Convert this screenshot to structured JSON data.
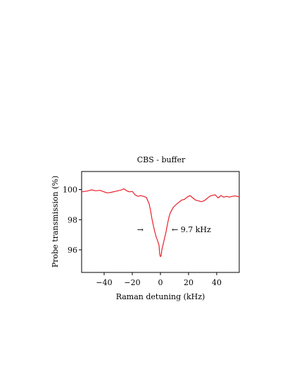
{
  "chart_data": {
    "type": "line",
    "title": "CBS - buffer",
    "xlabel": "Raman detuning (kHz)",
    "ylabel": "Probe transmission (%)",
    "xlim": [
      -56,
      56
    ],
    "ylim": [
      94.5,
      101.2
    ],
    "xticks": [
      -40,
      -20,
      0,
      20,
      40
    ],
    "xtick_labels": [
      "−40",
      "−20",
      "0",
      "20",
      "40"
    ],
    "yticks": [
      96,
      98,
      100
    ],
    "ytick_labels": [
      "96",
      "98",
      "100"
    ],
    "grid": false,
    "series": [
      {
        "color": "#e8202a",
        "x": [
          -56,
          -52,
          -49,
          -46,
          -43,
          -40,
          -38,
          -35,
          -31,
          -28,
          -26,
          -24,
          -22,
          -20,
          -18,
          -16,
          -14,
          -12,
          -10,
          -8,
          -7,
          -6,
          -5,
          -4,
          -3,
          -2,
          -1,
          -0.5,
          0,
          0.5,
          1,
          2,
          3,
          4,
          5,
          6,
          7,
          9,
          11,
          13,
          15,
          17,
          19,
          21,
          23,
          25,
          27,
          29,
          31,
          33,
          35,
          37,
          39,
          41,
          43,
          45,
          47,
          49,
          51,
          53,
          56
        ],
        "y": [
          99.85,
          99.9,
          99.98,
          99.92,
          99.95,
          99.85,
          99.78,
          99.82,
          99.9,
          99.97,
          100.05,
          99.92,
          99.85,
          99.88,
          99.65,
          99.55,
          99.6,
          99.55,
          99.48,
          99.05,
          98.6,
          98.05,
          97.6,
          97.2,
          96.85,
          96.6,
          96.3,
          95.7,
          95.55,
          95.6,
          96.0,
          96.4,
          96.8,
          97.2,
          97.7,
          98.15,
          98.45,
          98.8,
          99.0,
          99.15,
          99.3,
          99.35,
          99.5,
          99.6,
          99.45,
          99.3,
          99.25,
          99.2,
          99.25,
          99.4,
          99.55,
          99.62,
          99.65,
          99.45,
          99.6,
          99.5,
          99.55,
          99.5,
          99.55,
          99.58,
          99.52
        ]
      }
    ],
    "annotations": [
      {
        "text": "→",
        "x": -12,
        "y": 97.35
      },
      {
        "text": "← 9.7 kHz",
        "x": 8,
        "y": 97.35
      }
    ]
  }
}
